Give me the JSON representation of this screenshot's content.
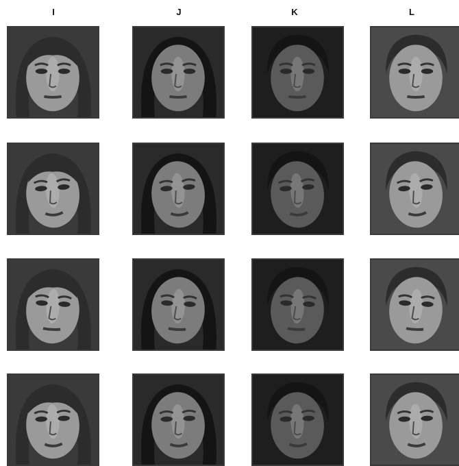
{
  "columns": [
    {
      "label": "I"
    },
    {
      "label": "J"
    },
    {
      "label": "K"
    },
    {
      "label": "L"
    }
  ],
  "grid": {
    "rows": 4,
    "cols": 4
  },
  "palette": {
    "background": "#ffffff",
    "frame": "#3a3a3a",
    "dark_bg": "#1e1e1e",
    "hair_dark": "#141414",
    "hair_mid": "#2c2c2c",
    "skin_light": "#9a9a9a",
    "skin_mid": "#7c7c7c",
    "skin_dark": "#5a5a5a"
  }
}
